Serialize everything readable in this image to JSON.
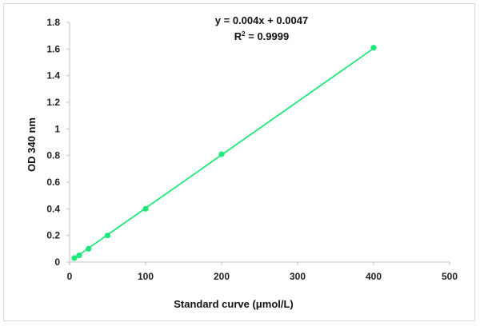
{
  "chart_data": {
    "type": "scatter",
    "title": "",
    "xlabel": "Standard curve (μmol/L)",
    "ylabel": "OD 340 nm",
    "xlim": [
      0,
      500
    ],
    "ylim": [
      0,
      1.8
    ],
    "x_ticks": [
      "0",
      "100",
      "200",
      "300",
      "400",
      "500"
    ],
    "y_ticks": [
      "0",
      "0.2",
      "0.4",
      "0.6",
      "0.8",
      "1",
      "1.2",
      "1.4",
      "1.6",
      "1.8"
    ],
    "grid": false,
    "legend": "none",
    "series": [
      {
        "x": [
          6.25,
          12.5,
          25,
          50,
          100,
          200,
          400
        ],
        "y": [
          0.03,
          0.05,
          0.1,
          0.2,
          0.4,
          0.81,
          1.61
        ],
        "color": "#1ee87a"
      }
    ],
    "trendline": {
      "slope": 0.004,
      "intercept": 0.0047,
      "color": "#1ee87a",
      "equation": "y = 0.004x + 0.0047",
      "r2_label": "R",
      "r2_power": "2",
      "r2_value": " = 0.9999"
    }
  }
}
